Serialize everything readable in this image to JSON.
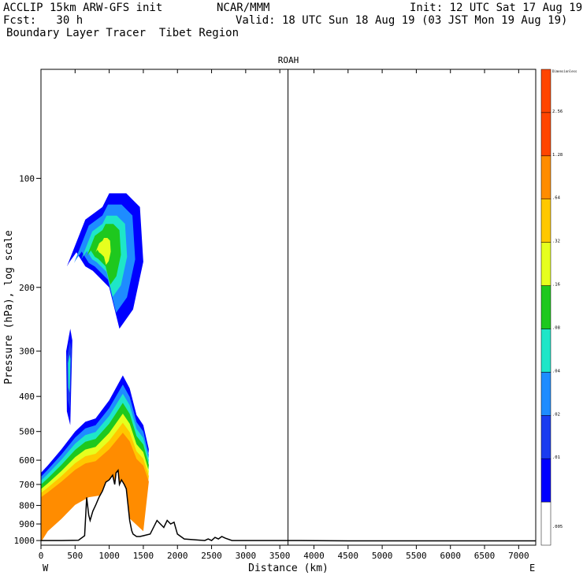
{
  "header": {
    "line1_left": "ACCLIP 15km ARW-GFS init",
    "line1_center": "NCAR/MMM",
    "line1_right": "Init: 12 UTC Sat 17 Aug 19",
    "line2_left": "Fcst:   30 h",
    "line2_right": "Valid: 18 UTC Sun 18 Aug 19 (03 JST Mon 19 Aug 19)",
    "line3": "Boundary Layer Tracer  Tibet Region"
  },
  "chart_data": {
    "type": "heatmap",
    "title": "ROAH",
    "xlabel": "Distance (km)",
    "ylabel": "Pressure (hPa), log scale",
    "xlim": [
      0,
      7250
    ],
    "ylim": [
      1030,
      50
    ],
    "x_ticks": [
      "0",
      "500",
      "1000",
      "1500",
      "2000",
      "2500",
      "3000",
      "3500",
      "4000",
      "4500",
      "5000",
      "5500",
      "6000",
      "6500",
      "7000"
    ],
    "y_ticks": [
      "100",
      "200",
      "300",
      "400",
      "500",
      "600",
      "700",
      "800",
      "900",
      "1000"
    ],
    "x_end_labels": {
      "left": "W",
      "right": "E"
    },
    "marker_line_km": 3620,
    "legend": {
      "title": "Dimensionless",
      "levels": [
        ".005",
        ".01",
        ".02",
        ".04",
        ".08",
        ".16",
        ".32",
        ".64",
        "1.28",
        "2.56"
      ],
      "colors": [
        "#ffffff",
        "#0000ff",
        "#1a3cf0",
        "#1e8cff",
        "#1ee6c8",
        "#1ec81e",
        "#e6ff1e",
        "#ffc800",
        "#ff8c00",
        "#ff4500"
      ]
    },
    "terrain": {
      "x": [
        0,
        300,
        550,
        640,
        660,
        670,
        700,
        720,
        760,
        800,
        850,
        900,
        950,
        1000,
        1050,
        1080,
        1100,
        1130,
        1150,
        1180,
        1220,
        1250,
        1300,
        1330,
        1350,
        1400,
        1450,
        1500,
        1600,
        1700,
        1750,
        1800,
        1850,
        1900,
        1950,
        2000,
        2100,
        2400,
        2450,
        2500,
        2550,
        2600,
        2650,
        2700,
        2800,
        2900,
        3500,
        3620,
        4500,
        7250
      ],
      "p": [
        1000,
        1000,
        998,
        970,
        820,
        760,
        850,
        880,
        830,
        800,
        760,
        730,
        690,
        680,
        660,
        700,
        650,
        640,
        700,
        680,
        700,
        720,
        880,
        940,
        960,
        975,
        975,
        970,
        960,
        880,
        900,
        920,
        880,
        900,
        890,
        960,
        990,
        1000,
        990,
        1000,
        980,
        990,
        975,
        985,
        1000,
        1000,
        1000,
        1000,
        1002,
        1002
      ]
    },
    "tracer_regions": [
      {
        "name": "upper-tracer",
        "level": ".16-.32",
        "x": [
          380,
          650,
          900,
          1000,
          1100,
          1250,
          1450,
          1500,
          1350,
          1150,
          1000,
          760,
          650,
          520,
          420,
          380
        ],
        "p": [
          175,
          130,
          120,
          110,
          110,
          110,
          120,
          170,
          230,
          260,
          200,
          180,
          175,
          160,
          170,
          175
        ]
      },
      {
        "name": "mid-tracer",
        "level": ".04-.16",
        "x": [
          370,
          430,
          460,
          430,
          380
        ],
        "p": [
          300,
          260,
          280,
          480,
          440
        ]
      },
      {
        "name": "boundary-layer-tracer",
        "level": "1.28-2.56",
        "x": [
          0,
          100,
          300,
          500,
          650,
          800,
          1000,
          1200,
          1300,
          1400,
          1500,
          1580,
          1500,
          1200,
          1000,
          850,
          700,
          500,
          300,
          100,
          0
        ],
        "p": [
          650,
          620,
          560,
          500,
          470,
          460,
          410,
          350,
          380,
          450,
          480,
          560,
          900,
          750,
          690,
          640,
          650,
          700,
          800,
          900,
          1000
        ]
      }
    ]
  }
}
